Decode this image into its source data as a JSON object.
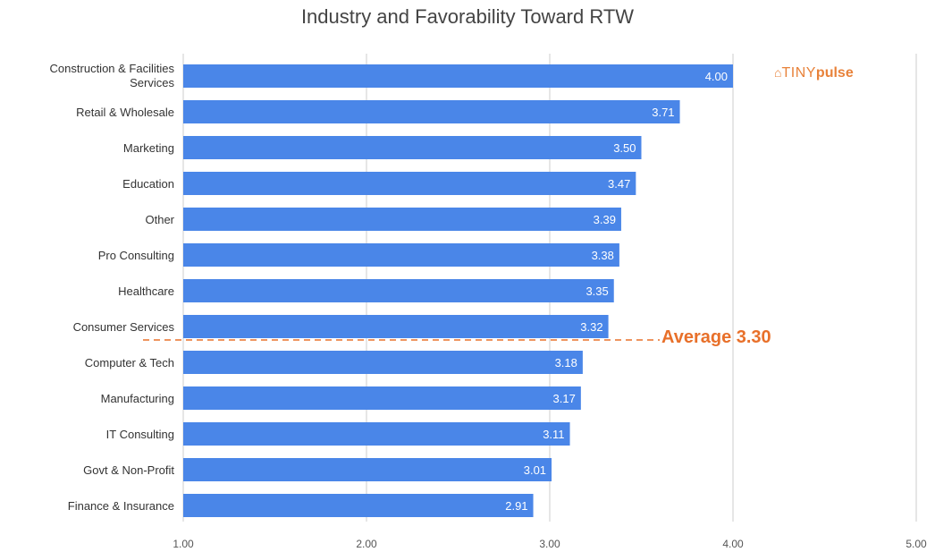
{
  "chart_data": {
    "type": "bar",
    "orientation": "horizontal",
    "title": "Industry and Favorability Toward RTW",
    "categories": [
      "Construction & Facilities Services",
      "Retail & Wholesale",
      "Marketing",
      "Education",
      "Other",
      "Pro Consulting",
      "Healthcare",
      "Consumer Services",
      "Computer & Tech",
      "Manufacturing",
      "IT Consulting",
      "Govt & Non-Profit",
      "Finance & Insurance"
    ],
    "category_lines": [
      [
        "Construction & Facilities",
        "Services"
      ],
      [
        "Retail & Wholesale"
      ],
      [
        "Marketing"
      ],
      [
        "Education"
      ],
      [
        "Other"
      ],
      [
        "Pro Consulting"
      ],
      [
        "Healthcare"
      ],
      [
        "Consumer Services"
      ],
      [
        "Computer & Tech"
      ],
      [
        "Manufacturing"
      ],
      [
        "IT Consulting"
      ],
      [
        "Govt & Non-Profit"
      ],
      [
        "Finance & Insurance"
      ]
    ],
    "values": [
      4.0,
      3.71,
      3.5,
      3.47,
      3.39,
      3.38,
      3.35,
      3.32,
      3.18,
      3.17,
      3.11,
      3.01,
      2.91
    ],
    "value_labels": [
      "4.00",
      "3.71",
      "3.50",
      "3.47",
      "3.39",
      "3.38",
      "3.35",
      "3.32",
      "3.18",
      "3.17",
      "3.11",
      "3.01",
      "2.91"
    ],
    "xlim": [
      1.0,
      5.0
    ],
    "x_ticks": [
      1.0,
      2.0,
      3.0,
      4.0,
      5.0
    ],
    "x_tick_labels": [
      "1.00",
      "2.00",
      "3.00",
      "4.00",
      "5.00"
    ],
    "grid": true,
    "bar_color": "#4a86e8",
    "average": {
      "value": 3.3,
      "label": "Average 3.30",
      "color": "#e8702a"
    }
  },
  "logo": {
    "mark": "⌂",
    "tiny": "TINY",
    "pulse": "pulse",
    "color": "#e8823a"
  }
}
